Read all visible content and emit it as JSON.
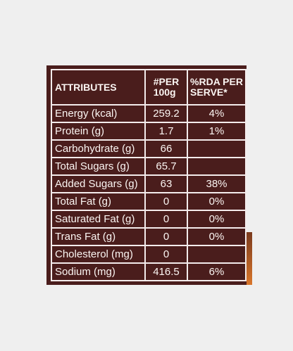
{
  "table": {
    "header": [
      "ATTRIBUTES",
      "#PER\n100g",
      "%RDA PER\nSERVE*"
    ],
    "rows": [
      [
        "Energy (kcal)",
        "259.2",
        "4%"
      ],
      [
        "Protein (g)",
        "1.7",
        "1%"
      ],
      [
        "Carbohydrate (g)",
        "66"
      ],
      [
        "Total Sugars (g)",
        "65.7"
      ],
      [
        "Added Sugars (g)",
        "63",
        "38%"
      ],
      [
        "Total Fat (g)",
        "0",
        "0%"
      ],
      [
        "Saturated Fat (g)",
        "0",
        "0%"
      ],
      [
        "Trans Fat (g)",
        "0",
        "0%"
      ],
      [
        "Cholesterol (mg)",
        "0"
      ],
      [
        "Sodium (mg)",
        "416.5",
        "6%"
      ]
    ]
  }
}
